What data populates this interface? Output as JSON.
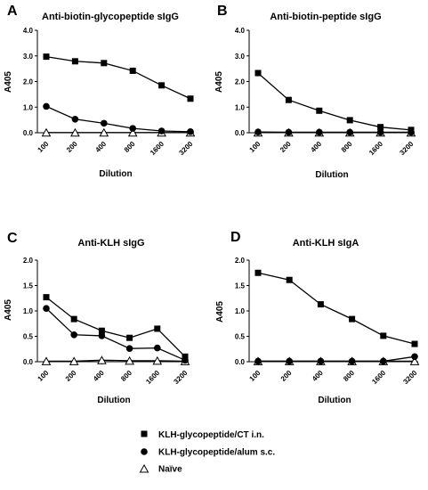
{
  "chart_data": [
    {
      "type": "line",
      "panel": "A",
      "title": "Anti-biotin-glycopeptide sIgG",
      "xlabel": "Dilution",
      "ylabel": "A405",
      "categories": [
        "100",
        "200",
        "400",
        "800",
        "1600",
        "3200"
      ],
      "ylim": [
        0,
        4.0
      ],
      "yticks": [
        "0.0",
        "1.0",
        "2.0",
        "3.0",
        "4.0"
      ],
      "series": [
        {
          "name": "KLH-glycopeptide/CT i.n.",
          "marker": "square",
          "values": [
            2.97,
            2.79,
            2.72,
            2.42,
            1.85,
            1.33
          ]
        },
        {
          "name": "KLH-glycopeptide/alum s.c.",
          "marker": "circle",
          "values": [
            1.03,
            0.53,
            0.37,
            0.17,
            0.07,
            0.04
          ]
        },
        {
          "name": "Naïve",
          "marker": "triangle",
          "values": [
            0.01,
            0.01,
            0.01,
            0.01,
            0.01,
            0.01
          ]
        }
      ]
    },
    {
      "type": "line",
      "panel": "B",
      "title": "Anti-biotin-peptide sIgG",
      "xlabel": "Dilution",
      "ylabel": "A405",
      "categories": [
        "100",
        "200",
        "400",
        "800",
        "1600",
        "3200"
      ],
      "ylim": [
        0,
        4.0
      ],
      "yticks": [
        "0.0",
        "1.0",
        "2.0",
        "3.0",
        "4.0"
      ],
      "series": [
        {
          "name": "KLH-glycopeptide/CT i.n.",
          "marker": "square",
          "values": [
            2.33,
            1.28,
            0.86,
            0.49,
            0.22,
            0.11
          ]
        },
        {
          "name": "KLH-glycopeptide/alum s.c.",
          "marker": "circle",
          "values": [
            0.03,
            0.02,
            0.02,
            0.02,
            0.02,
            0.02
          ]
        },
        {
          "name": "Naïve",
          "marker": "triangle",
          "values": [
            0.01,
            0.01,
            0.01,
            0.01,
            0.01,
            0.01
          ]
        }
      ]
    },
    {
      "type": "line",
      "panel": "C",
      "title": "Anti-KLH sIgG",
      "xlabel": "Dilution",
      "ylabel": "A405",
      "categories": [
        "100",
        "200",
        "400",
        "800",
        "1600",
        "3200"
      ],
      "ylim": [
        0,
        2.0
      ],
      "yticks": [
        "0.0",
        "0.5",
        "1.0",
        "1.5",
        "2.0"
      ],
      "series": [
        {
          "name": "KLH-glycopeptide/CT i.n.",
          "marker": "square",
          "values": [
            1.27,
            0.84,
            0.61,
            0.47,
            0.65,
            0.1
          ]
        },
        {
          "name": "KLH-glycopeptide/alum s.c.",
          "marker": "circle",
          "values": [
            1.05,
            0.53,
            0.51,
            0.26,
            0.27,
            0.03
          ]
        },
        {
          "name": "Naïve",
          "marker": "triangle",
          "values": [
            0.01,
            0.01,
            0.03,
            0.02,
            0.02,
            0.01
          ]
        }
      ]
    },
    {
      "type": "line",
      "panel": "D",
      "title": "Anti-KLH sIgA",
      "xlabel": "Dilution",
      "ylabel": "A405",
      "categories": [
        "100",
        "200",
        "400",
        "800",
        "1600",
        "3200"
      ],
      "ylim": [
        0,
        2.0
      ],
      "yticks": [
        "0.0",
        "0.5",
        "1.0",
        "1.5",
        "2.0"
      ],
      "series": [
        {
          "name": "KLH-glycopeptide/CT i.n.",
          "marker": "square",
          "values": [
            1.75,
            1.61,
            1.13,
            0.84,
            0.51,
            0.35
          ]
        },
        {
          "name": "KLH-glycopeptide/alum s.c.",
          "marker": "circle",
          "values": [
            0.01,
            0.01,
            0.01,
            0.01,
            0.01,
            0.1
          ]
        },
        {
          "name": "Naïve",
          "marker": "triangle",
          "values": [
            0.01,
            0.01,
            0.01,
            0.01,
            0.01,
            0.01
          ]
        }
      ]
    }
  ],
  "legend": {
    "placement": "bottom-center",
    "items": [
      {
        "label": "KLH-glycopeptide/CT i.n.",
        "marker": "square"
      },
      {
        "label": "KLH-glycopeptide/alum s.c.",
        "marker": "circle"
      },
      {
        "label": "Naïve",
        "marker": "triangle"
      }
    ]
  }
}
